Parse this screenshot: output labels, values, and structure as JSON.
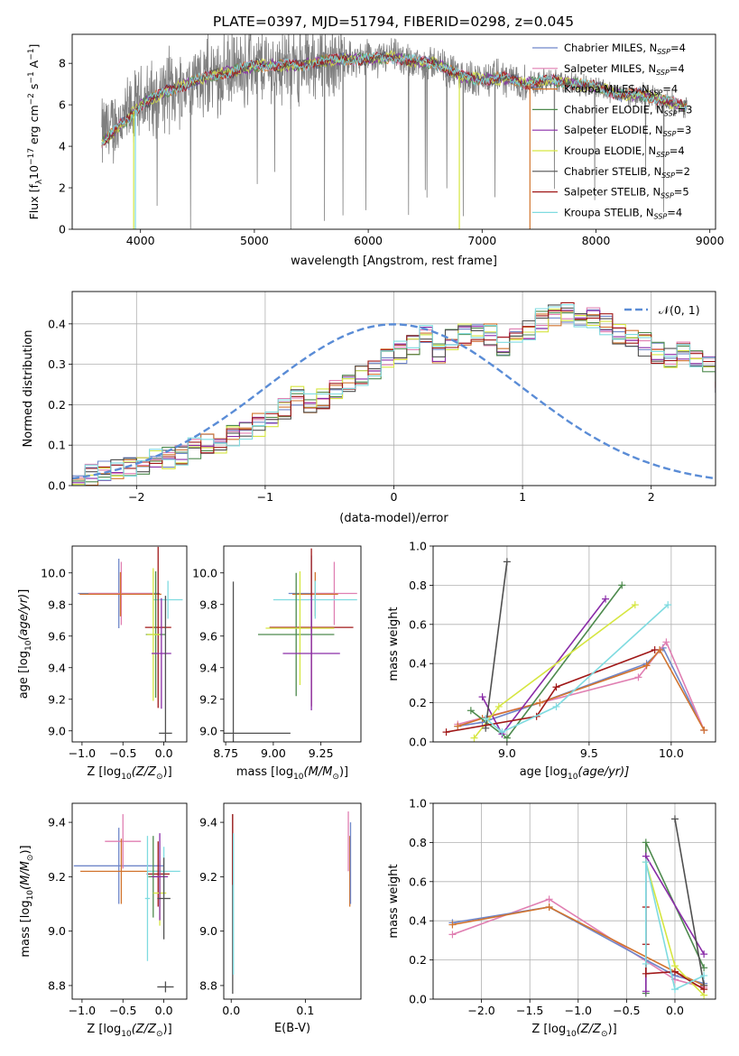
{
  "figure": {
    "title": "PLATE=0397, MJD=51794, FIBERID=0298, z=0.045"
  },
  "colors": {
    "Chabrier MILES": "#6f86c9",
    "Salpeter MILES": "#e07fb2",
    "Kroupa MILES": "#d2742e",
    "Chabrier ELODIE": "#4d8a4d",
    "Salpeter ELODIE": "#8a2ca8",
    "Kroupa ELODIE": "#d6e640",
    "Chabrier STELIB": "#505050",
    "Salpeter STELIB": "#a01818",
    "Kroupa STELIB": "#7fdbe0",
    "data": "#7f7f7f",
    "gaussian": "#5a8cd6"
  },
  "chart_data": [
    {
      "id": "spectrum",
      "type": "line",
      "xlabel": "wavelength [Angstrom, rest frame]",
      "ylabel_main": "Flux [f",
      "ylabel_sub": "λ",
      "ylabel_mid": "10",
      "ylabel_sup1": "−17",
      "ylabel_rest": " erg cm",
      "ylabel_sup2": "−2",
      "ylabel_s": " s",
      "ylabel_sup3": "−1",
      "ylabel_A": " A",
      "ylabel_sup4": "−1",
      "ylabel_end": "]",
      "xlim": [
        3400,
        9050
      ],
      "ylim": [
        0,
        9.4
      ],
      "xticks": [
        4000,
        5000,
        6000,
        7000,
        8000,
        9000
      ],
      "yticks": [
        0,
        2,
        4,
        6,
        8
      ],
      "legend_position": "top-right",
      "continuum": {
        "x": [
          3650,
          3750,
          3900,
          4000,
          4200,
          4400,
          4600,
          4800,
          5000,
          5200,
          5400,
          5600,
          5800,
          6000,
          6200,
          6400,
          6600,
          6800,
          7000,
          7200,
          7400,
          7600,
          7800,
          8000,
          8200,
          8400,
          8600,
          8800
        ],
        "y": [
          4.5,
          4.9,
          5.5,
          6.0,
          6.6,
          7.0,
          7.4,
          7.6,
          7.9,
          7.9,
          7.9,
          8.1,
          8.2,
          8.2,
          8.3,
          8.1,
          8.0,
          7.4,
          7.2,
          7.3,
          7.0,
          7.2,
          7.0,
          6.9,
          6.5,
          6.5,
          6.2,
          5.9
        ]
      },
      "legend": [
        {
          "model": "Chabrier MILES",
          "nssp": "4"
        },
        {
          "model": "Salpeter MILES",
          "nssp": "4"
        },
        {
          "model": "Kroupa MILES",
          "nssp": "4"
        },
        {
          "model": "Chabrier ELODIE",
          "nssp": "3"
        },
        {
          "model": "Salpeter ELODIE",
          "nssp": "3"
        },
        {
          "model": "Kroupa ELODIE",
          "nssp": "4"
        },
        {
          "model": "Chabrier STELIB",
          "nssp": "2"
        },
        {
          "model": "Salpeter STELIB",
          "nssp": "5"
        },
        {
          "model": "Kroupa STELIB",
          "nssp": "4"
        }
      ],
      "nssp_label": "N",
      "nssp_sub": "SSP"
    },
    {
      "id": "residuals",
      "type": "bar",
      "xlabel": "(data-model)/error",
      "ylabel": "Normed distribution",
      "xlim": [
        -2.5,
        2.5
      ],
      "ylim": [
        0,
        0.48
      ],
      "xticks": [
        -2,
        -1,
        0,
        1,
        2
      ],
      "yticks": [
        0.0,
        0.1,
        0.2,
        0.3,
        0.4
      ],
      "grid": true,
      "legend_position": "top-right",
      "gaussian_label": "𝒩(0, 1)",
      "bin_width": 0.1,
      "bin_start": -2.5,
      "base_values": [
        0.02,
        0.03,
        0.04,
        0.04,
        0.05,
        0.05,
        0.06,
        0.07,
        0.08,
        0.09,
        0.1,
        0.11,
        0.12,
        0.13,
        0.15,
        0.17,
        0.19,
        0.22,
        0.2,
        0.21,
        0.24,
        0.26,
        0.27,
        0.29,
        0.32,
        0.33,
        0.35,
        0.38,
        0.33,
        0.36,
        0.37,
        0.38,
        0.37,
        0.35,
        0.36,
        0.39,
        0.41,
        0.42,
        0.43,
        0.42,
        0.42,
        0.4,
        0.38,
        0.37,
        0.35,
        0.33,
        0.31,
        0.33,
        0.32,
        0.29,
        0.26,
        0.28,
        0.24,
        0.25,
        0.22,
        0.2,
        0.17,
        0.15,
        0.16,
        0.13,
        0.12,
        0.11,
        0.09,
        0.08,
        0.07,
        0.06,
        0.05,
        0.05,
        0.04,
        0.04,
        0.03,
        0.03,
        0.03,
        0.03
      ]
    },
    {
      "id": "age-vs-Z",
      "type": "scatter",
      "xlabel": "Z [log",
      "xlabel_sub": "10",
      "xlabel_rest": "(Z/Z",
      "xlabel_end": ")]",
      "ylabel": "age  [log10(age/yr)]",
      "xlim": [
        -1.12,
        0.28
      ],
      "ylim": [
        8.93,
        10.17
      ],
      "xticks": [
        -1.0,
        -0.5,
        0.0
      ],
      "yticks": [
        9.0,
        9.2,
        9.4,
        9.6,
        9.8,
        10.0
      ],
      "points": [
        {
          "model": "Chabrier MILES",
          "x": -0.55,
          "xerr": 0.5,
          "y": 9.87,
          "yerr": 0.22
        },
        {
          "model": "Salpeter MILES",
          "x": -0.52,
          "xerr": 0.4,
          "y": 9.87,
          "yerr": 0.2
        },
        {
          "model": "Kroupa MILES",
          "x": -0.53,
          "xerr": 0.5,
          "y": 9.865,
          "yerr": 0.14
        },
        {
          "model": "Kroupa STELIB",
          "x": 0.05,
          "xerr": 0.18,
          "y": 9.83,
          "yerr": 0.12
        },
        {
          "model": "Salpeter STELIB",
          "x": -0.07,
          "xerr": 0.16,
          "y": 9.655,
          "yerr": 0.51
        },
        {
          "model": "Chabrier ELODIE",
          "x": -0.1,
          "xerr": 0.12,
          "y": 9.61,
          "yerr": 0.4
        },
        {
          "model": "Kroupa ELODIE",
          "x": -0.13,
          "xerr": 0.08,
          "y": 9.61,
          "yerr": 0.42
        },
        {
          "model": "Salpeter ELODIE",
          "x": -0.03,
          "xerr": 0.12,
          "y": 9.49,
          "yerr": 0.35
        },
        {
          "model": "Chabrier STELIB",
          "x": 0.02,
          "xerr": 0.08,
          "y": 8.985,
          "yerr": 0.87
        }
      ]
    },
    {
      "id": "age-vs-mass",
      "type": "scatter",
      "xlabel": "mass [log",
      "xlabel_sub": "10",
      "xlabel_rest": "(M/M",
      "xlabel_end": ")]",
      "ylabel": "",
      "xlim": [
        8.74,
        9.46
      ],
      "ylim": [
        8.93,
        10.17
      ],
      "xticks": [
        8.75,
        9.0,
        9.25
      ],
      "yticks": [
        9.0,
        9.2,
        9.4,
        9.6,
        9.8,
        10.0
      ],
      "points": [
        {
          "model": "Chabrier MILES",
          "x": 9.2,
          "xerr": 0.12,
          "y": 9.87,
          "yerr": 0.24
        },
        {
          "model": "Salpeter MILES",
          "x": 9.32,
          "xerr": 0.12,
          "y": 9.87,
          "yerr": 0.2
        },
        {
          "model": "Kroupa MILES",
          "x": 9.22,
          "xerr": 0.12,
          "y": 9.865,
          "yerr": 0.14
        },
        {
          "model": "Kroupa STELIB",
          "x": 9.22,
          "xerr": 0.22,
          "y": 9.83,
          "yerr": 0.12
        },
        {
          "model": "Salpeter STELIB",
          "x": 9.2,
          "xerr": 0.22,
          "y": 9.655,
          "yerr": 0.5
        },
        {
          "model": "Chabrier ELODIE",
          "x": 9.12,
          "xerr": 0.2,
          "y": 9.61,
          "yerr": 0.39
        },
        {
          "model": "Kroupa ELODIE",
          "x": 9.14,
          "xerr": 0.18,
          "y": 9.65,
          "yerr": 0.36
        },
        {
          "model": "Salpeter ELODIE",
          "x": 9.2,
          "xerr": 0.15,
          "y": 9.49,
          "yerr": 0.36
        },
        {
          "model": "Chabrier STELIB",
          "x": 8.79,
          "xerr": 0.3,
          "y": 8.985,
          "yerr": 0.96
        }
      ]
    },
    {
      "id": "weight-vs-age",
      "type": "line",
      "xlabel": "age  [log",
      "xlabel_sub": "10",
      "xlabel_rest": "(age/yr)]",
      "ylabel": "mass weight",
      "xlim": [
        8.55,
        10.27
      ],
      "ylim": [
        0,
        1.0
      ],
      "xticks": [
        9.0,
        9.5,
        10.0
      ],
      "yticks": [
        0.0,
        0.2,
        0.4,
        0.6,
        0.8,
        1.0
      ],
      "grid": true,
      "series": [
        {
          "model": "Chabrier MILES",
          "x": [
            8.7,
            8.85,
            9.2,
            9.85,
            9.95,
            10.2
          ],
          "y": [
            0.08,
            0.1,
            0.2,
            0.4,
            0.48,
            0.06
          ]
        },
        {
          "model": "Salpeter MILES",
          "x": [
            8.7,
            9.8,
            9.97,
            10.2
          ],
          "y": [
            0.09,
            0.33,
            0.51,
            0.06
          ]
        },
        {
          "model": "Kroupa MILES",
          "x": [
            8.7,
            8.85,
            9.2,
            9.85,
            9.93,
            10.2
          ],
          "y": [
            0.08,
            0.12,
            0.2,
            0.39,
            0.47,
            0.06
          ]
        },
        {
          "model": "Chabrier ELODIE",
          "x": [
            8.78,
            9.0,
            9.7
          ],
          "y": [
            0.16,
            0.02,
            0.8
          ]
        },
        {
          "model": "Salpeter ELODIE",
          "x": [
            8.85,
            8.97,
            9.6
          ],
          "y": [
            0.23,
            0.04,
            0.73
          ]
        },
        {
          "model": "Kroupa ELODIE",
          "x": [
            8.8,
            8.95,
            9.78
          ],
          "y": [
            0.02,
            0.18,
            0.7
          ]
        },
        {
          "model": "Chabrier STELIB",
          "x": [
            8.87,
            9.0
          ],
          "y": [
            0.07,
            0.92
          ]
        },
        {
          "model": "Salpeter STELIB",
          "x": [
            8.63,
            9.18,
            9.3,
            9.9
          ],
          "y": [
            0.05,
            0.13,
            0.28,
            0.47
          ]
        },
        {
          "model": "Kroupa STELIB",
          "x": [
            8.87,
            8.97,
            9.3,
            9.98
          ],
          "y": [
            0.12,
            0.05,
            0.18,
            0.7
          ]
        }
      ]
    },
    {
      "id": "mass-vs-Z",
      "type": "scatter",
      "xlabel": "Z [log",
      "xlabel_sub": "10",
      "xlabel_rest": "(Z/Z",
      "xlabel_end": ")]",
      "ylabel": "mass [log10(M/M☉)]",
      "xlim": [
        -1.12,
        0.28
      ],
      "ylim": [
        8.75,
        9.47
      ],
      "xticks": [
        -1.0,
        -0.5,
        0.0
      ],
      "yticks": [
        8.8,
        9.0,
        9.2,
        9.4
      ],
      "points": [
        {
          "model": "Chabrier MILES",
          "x": -0.55,
          "xerr": 0.55,
          "y": 9.24,
          "yerr": 0.14
        },
        {
          "model": "Salpeter MILES",
          "x": -0.5,
          "xerr": 0.22,
          "y": 9.33,
          "yerr": 0.1
        },
        {
          "model": "Kroupa MILES",
          "x": -0.52,
          "xerr": 0.5,
          "y": 9.22,
          "yerr": 0.12
        },
        {
          "model": "Kroupa STELIB",
          "x": 0.0,
          "xerr": 0.2,
          "y": 9.22,
          "yerr": 0.09
        },
        {
          "model": "Salpeter STELIB",
          "x": -0.07,
          "xerr": 0.14,
          "y": 9.21,
          "yerr": 0.12
        },
        {
          "model": "Chabrier ELODIE",
          "x": -0.13,
          "xerr": 0.06,
          "y": 9.2,
          "yerr": 0.15
        },
        {
          "model": "Kroupa ELODIE",
          "x": -0.05,
          "xerr": 0.08,
          "y": 9.14,
          "yerr": 0.12
        },
        {
          "model": "Salpeter ELODIE",
          "x": -0.05,
          "xerr": 0.1,
          "y": 9.2,
          "yerr": 0.16
        },
        {
          "model": "Chabrier STELIB",
          "x": 0.0,
          "xerr": 0.08,
          "y": 9.12,
          "yerr": 0.15
        },
        {
          "model": "Chabrier STELIB",
          "x": 0.02,
          "xerr": 0.1,
          "y": 8.795,
          "yerr": 0.02
        },
        {
          "model": "Kroupa STELIB",
          "x": -0.2,
          "xerr": 0.03,
          "y": 9.12,
          "yerr": 0.23
        }
      ]
    },
    {
      "id": "mass-vs-ebv",
      "type": "scatter",
      "xlabel": "E(B-V)",
      "ylabel": "",
      "xlim": [
        -0.01,
        0.175
      ],
      "ylim": [
        8.75,
        9.47
      ],
      "xticks": [
        0.0,
        0.1
      ],
      "yticks": [
        8.8,
        9.0,
        9.2,
        9.4
      ],
      "points": [
        {
          "model": "Chabrier STELIB",
          "x": 0.002,
          "xerr": 0,
          "y": 9.1,
          "yerr": 0.33
        },
        {
          "model": "Salpeter STELIB",
          "x": 0.002,
          "xerr": 0,
          "y": 9.3,
          "yerr": 0.13
        },
        {
          "model": "Kroupa STELIB",
          "x": 0.003,
          "xerr": 0,
          "y": 9.1,
          "yerr": 0.26
        },
        {
          "model": "Salpeter MILES",
          "x": 0.158,
          "xerr": 0,
          "y": 9.33,
          "yerr": 0.11
        },
        {
          "model": "Kroupa MILES",
          "x": 0.16,
          "xerr": 0,
          "y": 9.22,
          "yerr": 0.13
        },
        {
          "model": "Chabrier MILES",
          "x": 0.161,
          "xerr": 0,
          "y": 9.25,
          "yerr": 0.15
        }
      ]
    },
    {
      "id": "weight-vs-Z",
      "type": "line",
      "xlabel": "Z [log",
      "xlabel_sub": "10",
      "xlabel_rest": "(Z/Z",
      "xlabel_end": ")]",
      "ylabel": "mass weight",
      "xlim": [
        -2.5,
        0.42
      ],
      "ylim": [
        0,
        1.0
      ],
      "xticks": [
        -2.0,
        -1.5,
        -1.0,
        -0.5,
        0.0
      ],
      "yticks": [
        0.0,
        0.2,
        0.4,
        0.6,
        0.8,
        1.0
      ],
      "grid": true,
      "series": [
        {
          "model": "Salpeter MILES",
          "x": [
            -2.3,
            -1.3,
            0.0,
            0.3
          ],
          "y": [
            0.33,
            0.51,
            0.1,
            0.06
          ]
        },
        {
          "model": "Chabrier MILES",
          "x": [
            -2.3,
            -1.3,
            0.0,
            0.3
          ],
          "y": [
            0.39,
            0.47,
            0.12,
            0.08
          ]
        },
        {
          "model": "Kroupa MILES",
          "x": [
            -2.3,
            -1.3,
            0.0,
            0.3
          ],
          "y": [
            0.38,
            0.47,
            0.14,
            0.07
          ]
        },
        {
          "model": "Chabrier ELODIE",
          "x": [
            -0.3,
            -0.3,
            0.3
          ],
          "y": [
            0.03,
            0.8,
            0.16
          ]
        },
        {
          "model": "Salpeter ELODIE",
          "x": [
            -0.3,
            -0.3,
            0.3
          ],
          "y": [
            0.04,
            0.73,
            0.23
          ]
        },
        {
          "model": "Kroupa ELODIE",
          "x": [
            -0.3,
            0.0,
            0.3
          ],
          "y": [
            0.7,
            0.17,
            0.02
          ]
        },
        {
          "model": "Chabrier STELIB",
          "x": [
            0.0,
            0.3
          ],
          "y": [
            0.92,
            0.07
          ]
        },
        {
          "model": "Salpeter STELIB",
          "x": [
            -0.3,
            -0.3,
            -0.3,
            0.0,
            0.3
          ],
          "y": [
            0.47,
            0.28,
            0.13,
            0.14,
            0.05
          ]
        },
        {
          "model": "Kroupa STELIB",
          "x": [
            -0.3,
            -0.3,
            0.0,
            0.3
          ],
          "y": [
            0.18,
            0.7,
            0.05,
            0.12
          ]
        }
      ]
    }
  ]
}
